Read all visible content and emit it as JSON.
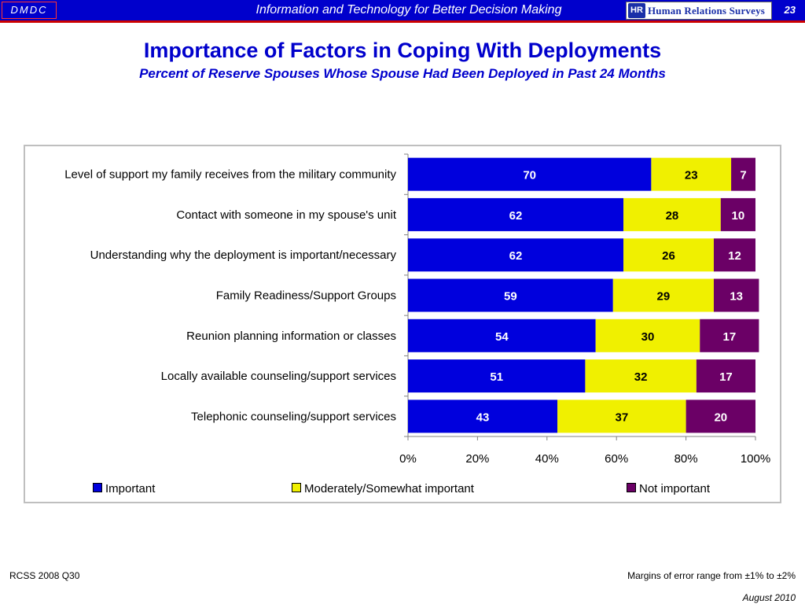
{
  "header": {
    "left_logo": "DMDC",
    "title": "Information and Technology for Better Decision Making",
    "right_logo_mark": "HR",
    "right_logo_text": "Human Relations Surveys",
    "page_number": "23"
  },
  "title": "Importance of Factors in Coping With Deployments",
  "subtitle": "Percent of Reserve Spouses Whose Spouse Had Been Deployed in Past 24 Months",
  "chart_data": {
    "type": "bar",
    "orientation": "horizontal",
    "stacked": true,
    "categories": [
      "Level of support my family receives from the military community",
      "Contact with someone in my spouse's unit",
      "Understanding why the deployment is important/necessary",
      "Family Readiness/Support Groups",
      "Reunion planning information or classes",
      "Locally available counseling/support services",
      "Telephonic counseling/support services"
    ],
    "series": [
      {
        "name": "Important",
        "color": "#0000dd",
        "label_color": "#ffffff",
        "values": [
          70,
          62,
          62,
          59,
          54,
          51,
          43
        ]
      },
      {
        "name": "Moderately/Somewhat important",
        "color": "#f0f000",
        "label_color": "#000000",
        "values": [
          23,
          28,
          26,
          29,
          30,
          32,
          37
        ]
      },
      {
        "name": "Not important",
        "color": "#6b0066",
        "label_color": "#ffffff",
        "values": [
          7,
          10,
          12,
          13,
          17,
          17,
          20
        ]
      }
    ],
    "xlim": [
      0,
      100
    ],
    "x_ticks": [
      "0%",
      "20%",
      "40%",
      "60%",
      "80%",
      "100%"
    ],
    "legend_position": "bottom",
    "grid": false
  },
  "footer": {
    "source": "RCSS 2008 Q30",
    "note": "Margins of error range from ±1% to ±2%",
    "date": "August 2010"
  }
}
